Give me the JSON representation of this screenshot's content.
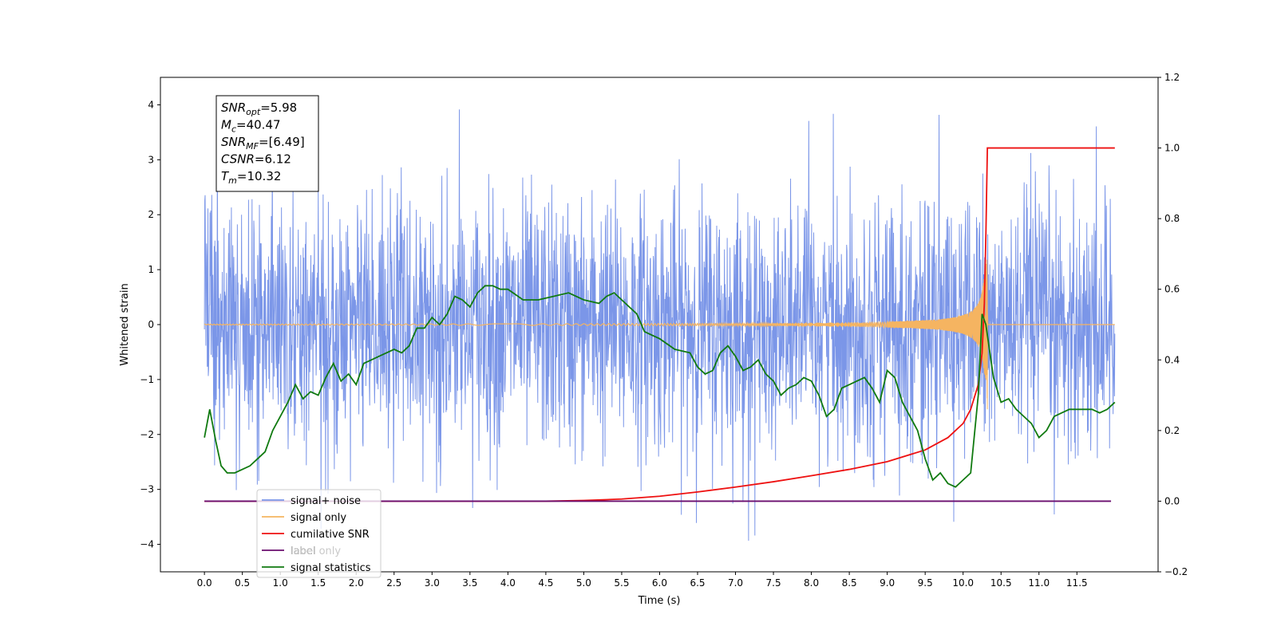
{
  "chart_data": {
    "type": "line",
    "xlabel": "Time (s)",
    "ylabel": "Whitened strain",
    "xlim": [
      -0.58,
      12.57
    ],
    "ylim": [
      -4.5,
      4.5
    ],
    "y2lim": [
      -0.2,
      1.2
    ],
    "x_ticks": [
      "0.0",
      "0.5",
      "1.0",
      "1.5",
      "2.0",
      "2.5",
      "3.0",
      "3.5",
      "4.0",
      "4.5",
      "5.0",
      "5.5",
      "6.0",
      "6.5",
      "7.0",
      "7.5",
      "8.0",
      "8.5",
      "9.0",
      "9.5",
      "10.0",
      "10.5",
      "11.0",
      "11.5"
    ],
    "y_ticks": [
      "4",
      "3",
      "2",
      "1",
      "0",
      "−1",
      "−2",
      "−3",
      "−4"
    ],
    "y2_ticks": [
      "1.2",
      "1.0",
      "0.8",
      "0.6",
      "0.4",
      "0.2",
      "0.0",
      "−0.2"
    ],
    "grid": false,
    "legend_placement": "lower-left",
    "stats_box": {
      "lines": [
        {
          "sym": "SNR",
          "sub": "opt",
          "value": "=5.98"
        },
        {
          "sym": "M",
          "sub": "c",
          "value": "=40.47"
        },
        {
          "sym": "SNR",
          "sub": "MF",
          "value": "=[6.49]"
        },
        {
          "sym": "CSNR",
          "sub": "",
          "value": "=6.12"
        },
        {
          "sym": "T",
          "sub": "m",
          "value": "=10.32"
        }
      ]
    },
    "series": [
      {
        "name": "signal+ noise",
        "color": "#7b96e8",
        "axis": "left",
        "x_range": [
          0.0,
          12.0
        ],
        "noise_std": 1.15,
        "peak_max": 4.05,
        "peak_min": -4.1
      },
      {
        "name": "signal only",
        "color": "#f5b461",
        "axis": "left",
        "merger_time": 10.32,
        "peak_amplitude": 1.6
      },
      {
        "name": "cumilative SNR",
        "color": "#ee1111",
        "axis": "right",
        "x": [
          0.0,
          4.5,
          5.0,
          5.5,
          6.0,
          6.5,
          7.0,
          7.5,
          8.0,
          8.5,
          9.0,
          9.5,
          9.8,
          10.0,
          10.1,
          10.2,
          10.25,
          10.28,
          10.3,
          10.32,
          12.0
        ],
        "values": [
          0.0,
          0.0,
          0.002,
          0.006,
          0.014,
          0.026,
          0.04,
          0.055,
          0.072,
          0.09,
          0.112,
          0.145,
          0.18,
          0.22,
          0.26,
          0.33,
          0.42,
          0.56,
          0.75,
          1.0,
          1.0
        ]
      },
      {
        "name": "label",
        "color": "#6a0d6e",
        "axis": "right",
        "x": [
          0.0,
          11.95
        ],
        "values": [
          0.0,
          0.0
        ]
      },
      {
        "name": "label only",
        "color": "#c9c9c9",
        "axis": "right",
        "legend_only": true
      },
      {
        "name": "signal statistics",
        "color": "#107a10",
        "axis": "right",
        "x": [
          0.0,
          0.07,
          0.15,
          0.22,
          0.3,
          0.4,
          0.5,
          0.6,
          0.7,
          0.8,
          0.9,
          1.0,
          1.1,
          1.2,
          1.3,
          1.4,
          1.5,
          1.6,
          1.7,
          1.8,
          1.9,
          2.0,
          2.1,
          2.2,
          2.3,
          2.4,
          2.5,
          2.6,
          2.7,
          2.8,
          2.9,
          3.0,
          3.1,
          3.2,
          3.3,
          3.4,
          3.5,
          3.6,
          3.7,
          3.8,
          3.9,
          4.0,
          4.2,
          4.4,
          4.6,
          4.8,
          5.0,
          5.2,
          5.3,
          5.4,
          5.5,
          5.6,
          5.7,
          5.8,
          5.9,
          6.0,
          6.2,
          6.4,
          6.5,
          6.6,
          6.7,
          6.8,
          6.9,
          7.0,
          7.1,
          7.2,
          7.3,
          7.4,
          7.5,
          7.6,
          7.7,
          7.8,
          7.9,
          8.0,
          8.1,
          8.2,
          8.3,
          8.4,
          8.5,
          8.6,
          8.7,
          8.8,
          8.9,
          9.0,
          9.1,
          9.2,
          9.3,
          9.4,
          9.5,
          9.6,
          9.7,
          9.8,
          9.9,
          10.0,
          10.1,
          10.2,
          10.25,
          10.3,
          10.4,
          10.5,
          10.6,
          10.7,
          10.8,
          10.9,
          11.0,
          11.1,
          11.2,
          11.3,
          11.4,
          11.5,
          11.6,
          11.7,
          11.8,
          11.9,
          12.0
        ],
        "values": [
          0.18,
          0.26,
          0.17,
          0.1,
          0.08,
          0.08,
          0.09,
          0.1,
          0.12,
          0.14,
          0.2,
          0.24,
          0.28,
          0.33,
          0.29,
          0.31,
          0.3,
          0.35,
          0.39,
          0.34,
          0.36,
          0.33,
          0.39,
          0.4,
          0.41,
          0.42,
          0.43,
          0.42,
          0.44,
          0.49,
          0.49,
          0.52,
          0.5,
          0.53,
          0.58,
          0.57,
          0.55,
          0.59,
          0.61,
          0.61,
          0.6,
          0.6,
          0.57,
          0.57,
          0.58,
          0.59,
          0.57,
          0.56,
          0.58,
          0.59,
          0.57,
          0.55,
          0.53,
          0.48,
          0.47,
          0.46,
          0.43,
          0.42,
          0.38,
          0.36,
          0.37,
          0.42,
          0.44,
          0.41,
          0.37,
          0.38,
          0.4,
          0.36,
          0.34,
          0.3,
          0.32,
          0.33,
          0.35,
          0.34,
          0.3,
          0.24,
          0.26,
          0.32,
          0.33,
          0.34,
          0.35,
          0.32,
          0.28,
          0.37,
          0.35,
          0.28,
          0.24,
          0.2,
          0.12,
          0.06,
          0.08,
          0.05,
          0.04,
          0.06,
          0.08,
          0.3,
          0.53,
          0.5,
          0.35,
          0.28,
          0.29,
          0.26,
          0.24,
          0.22,
          0.18,
          0.2,
          0.24,
          0.25,
          0.26,
          0.26,
          0.26,
          0.26,
          0.25,
          0.26,
          0.28
        ]
      }
    ]
  }
}
